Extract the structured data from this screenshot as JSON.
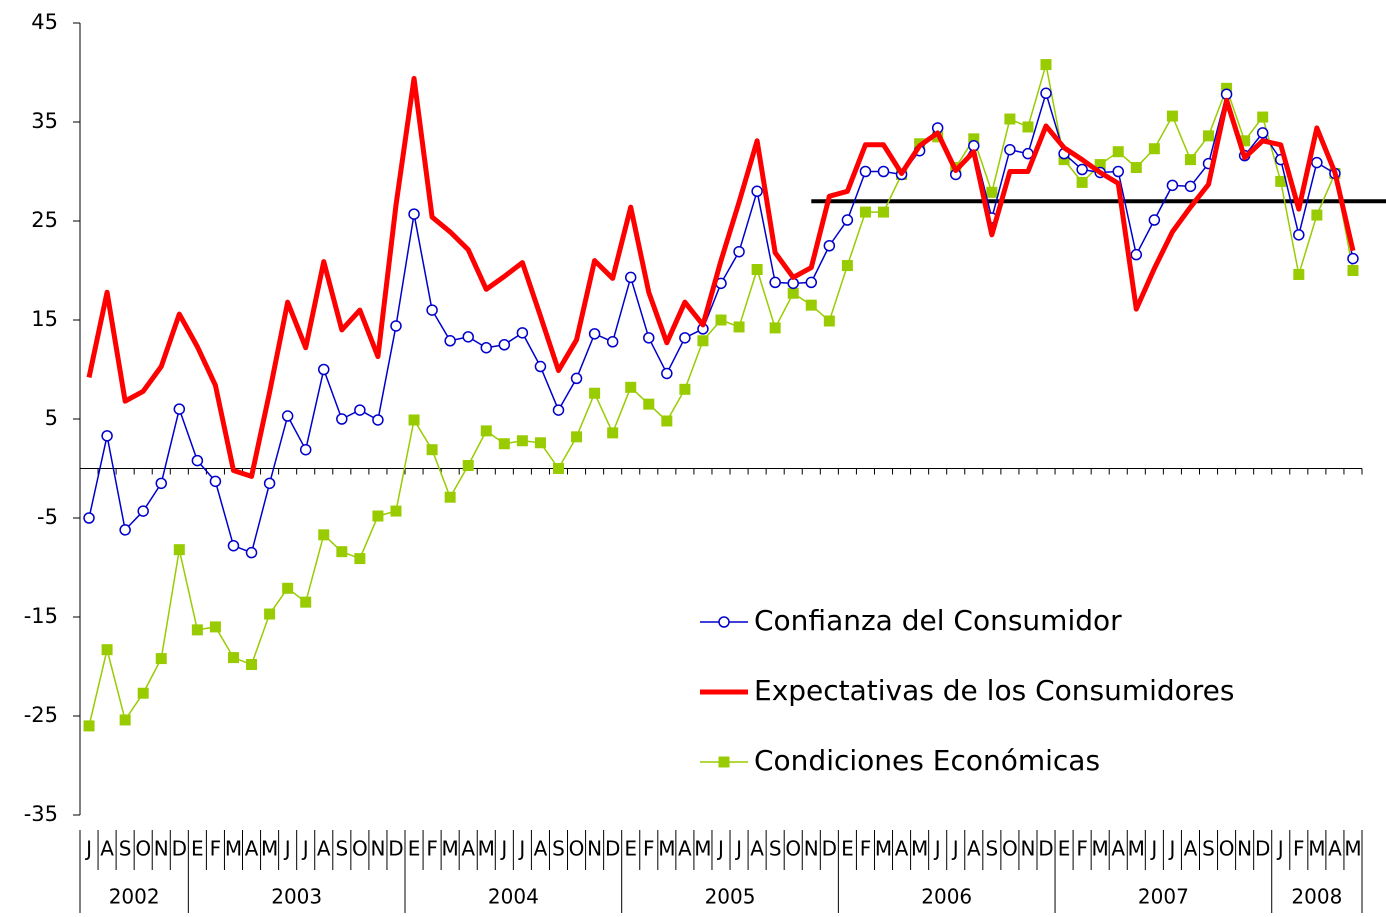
{
  "chart_data": {
    "type": "line",
    "categories": [
      [
        "J",
        "2002"
      ],
      [
        "A",
        "2002"
      ],
      [
        "S",
        "2002"
      ],
      [
        "O",
        "2002"
      ],
      [
        "N",
        "2002"
      ],
      [
        "D",
        "2002"
      ],
      [
        "E",
        "2003"
      ],
      [
        "F",
        "2003"
      ],
      [
        "M",
        "2003"
      ],
      [
        "A",
        "2003"
      ],
      [
        "M",
        "2003"
      ],
      [
        "J",
        "2003"
      ],
      [
        "J",
        "2003"
      ],
      [
        "A",
        "2003"
      ],
      [
        "S",
        "2003"
      ],
      [
        "O",
        "2003"
      ],
      [
        "N",
        "2003"
      ],
      [
        "D",
        "2003"
      ],
      [
        "E",
        "2004"
      ],
      [
        "F",
        "2004"
      ],
      [
        "M",
        "2004"
      ],
      [
        "A",
        "2004"
      ],
      [
        "M",
        "2004"
      ],
      [
        "J",
        "2004"
      ],
      [
        "J",
        "2004"
      ],
      [
        "A",
        "2004"
      ],
      [
        "S",
        "2004"
      ],
      [
        "O",
        "2004"
      ],
      [
        "N",
        "2004"
      ],
      [
        "D",
        "2004"
      ],
      [
        "E",
        "2005"
      ],
      [
        "F",
        "2005"
      ],
      [
        "M",
        "2005"
      ],
      [
        "A",
        "2005"
      ],
      [
        "M",
        "2005"
      ],
      [
        "J",
        "2005"
      ],
      [
        "J",
        "2005"
      ],
      [
        "A",
        "2005"
      ],
      [
        "S",
        "2005"
      ],
      [
        "O",
        "2005"
      ],
      [
        "N",
        "2005"
      ],
      [
        "D",
        "2005"
      ],
      [
        "E",
        "2006"
      ],
      [
        "F",
        "2006"
      ],
      [
        "M",
        "2006"
      ],
      [
        "A",
        "2006"
      ],
      [
        "M",
        "2006"
      ],
      [
        "J",
        "2006"
      ],
      [
        "J",
        "2006"
      ],
      [
        "A",
        "2006"
      ],
      [
        "S",
        "2006"
      ],
      [
        "O",
        "2006"
      ],
      [
        "N",
        "2006"
      ],
      [
        "D",
        "2006"
      ],
      [
        "E",
        "2007"
      ],
      [
        "F",
        "2007"
      ],
      [
        "M",
        "2007"
      ],
      [
        "A",
        "2007"
      ],
      [
        "M",
        "2007"
      ],
      [
        "J",
        "2007"
      ],
      [
        "J",
        "2007"
      ],
      [
        "A",
        "2007"
      ],
      [
        "S",
        "2007"
      ],
      [
        "O",
        "2007"
      ],
      [
        "N",
        "2007"
      ],
      [
        "D",
        "2007"
      ],
      [
        "J",
        "2008"
      ],
      [
        "F",
        "2008"
      ],
      [
        "M",
        "2008"
      ],
      [
        "A",
        "2008"
      ],
      [
        "M",
        "2008"
      ]
    ],
    "series": [
      {
        "name": "Confianza del Consumidor",
        "color": "#0000cc",
        "marker": "circle",
        "values": [
          -5,
          3.3,
          -6.2,
          -4.3,
          -1.5,
          6,
          0.8,
          -1.3,
          -7.8,
          -8.5,
          -1.5,
          5.3,
          1.9,
          10,
          5,
          5.9,
          4.9,
          14.4,
          25.7,
          16,
          12.9,
          13.3,
          12.2,
          12.5,
          13.7,
          10.3,
          5.9,
          9.1,
          13.6,
          12.8,
          19.3,
          13.2,
          9.6,
          13.2,
          14.1,
          18.7,
          21.9,
          28,
          18.8,
          18.7,
          18.8,
          22.5,
          25.1,
          30,
          30,
          29.7,
          32.1,
          34.4,
          29.7,
          32.6,
          25.3,
          32.2,
          31.8,
          37.9,
          31.8,
          30.2,
          29.9,
          30,
          21.6,
          25.1,
          28.6,
          28.5,
          30.8,
          37.8,
          31.6,
          33.9,
          31.2,
          23.6,
          30.9,
          29.8,
          21.2
        ]
      },
      {
        "name": "Expectativas de los Consumidores",
        "color": "#ff0000",
        "marker": "none",
        "values": [
          9.2,
          17.8,
          6.8,
          7.8,
          10.3,
          15.6,
          12.3,
          8.4,
          -0.2,
          -0.8,
          7.7,
          16.8,
          12.2,
          20.9,
          14,
          16,
          11.3,
          26.6,
          39.4,
          25.4,
          23.9,
          22.1,
          18.1,
          19.4,
          20.8,
          15.4,
          9.9,
          13,
          21,
          19.2,
          26.4,
          17.8,
          12.7,
          16.8,
          14.5,
          21,
          26.9,
          33.1,
          21.8,
          19.3,
          20.3,
          27.5,
          28,
          32.7,
          32.7,
          29.8,
          32.6,
          33.9,
          30.1,
          32,
          23.6,
          30,
          30,
          34.6,
          32.4,
          31.2,
          29.9,
          28.8,
          16.1,
          20.2,
          23.9,
          26.4,
          28.7,
          37.2,
          31.4,
          33.1,
          32.7,
          26.2,
          34.4,
          29.9,
          22
        ]
      },
      {
        "name": "Condiciones Económicas",
        "color": "#99cc00",
        "marker": "square",
        "values": [
          -26,
          -18.3,
          -25.4,
          -22.7,
          -19.2,
          -8.2,
          -16.3,
          -16,
          -19.1,
          -19.8,
          -14.7,
          -12.1,
          -13.5,
          -6.7,
          -8.4,
          -9.1,
          -4.8,
          -4.3,
          4.9,
          1.9,
          -2.9,
          0.3,
          3.8,
          2.5,
          2.8,
          2.6,
          0,
          3.2,
          7.6,
          3.6,
          8.2,
          6.5,
          4.8,
          8,
          12.9,
          15,
          14.3,
          20.1,
          14.2,
          17.7,
          16.5,
          14.9,
          20.5,
          25.9,
          25.9,
          29.7,
          32.8,
          33.5,
          30.4,
          33.3,
          27.9,
          35.3,
          34.5,
          40.8,
          31.2,
          28.9,
          30.7,
          32,
          30.4,
          32.3,
          35.6,
          31.2,
          33.6,
          38.4,
          33.1,
          35.5,
          29,
          19.6,
          25.6,
          29.8,
          20
        ]
      }
    ],
    "ylim": [
      -35,
      45
    ],
    "yticks": [
      -35,
      -25,
      -15,
      -5,
      5,
      15,
      25,
      35,
      45
    ],
    "reference_line": {
      "value": 27,
      "start": 40,
      "color": "#000000"
    }
  }
}
